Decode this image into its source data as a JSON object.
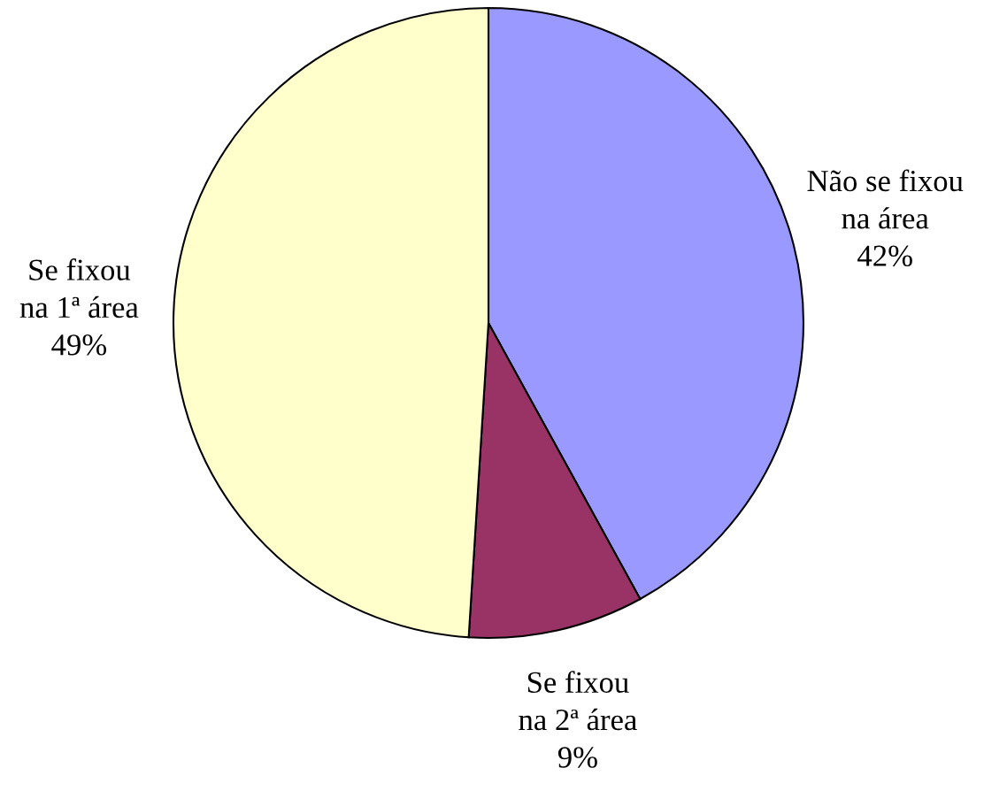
{
  "chart_data": {
    "type": "pie",
    "categories": [
      "Não se fixou\nna área",
      "Se fixou\nna 2ª área",
      "Se fixou\nna 1ª área"
    ],
    "values": [
      42,
      9,
      49
    ],
    "value_labels": [
      "42%",
      "9%",
      "49%"
    ],
    "colors": [
      "#9999ff",
      "#993366",
      "#ffffcc"
    ]
  }
}
